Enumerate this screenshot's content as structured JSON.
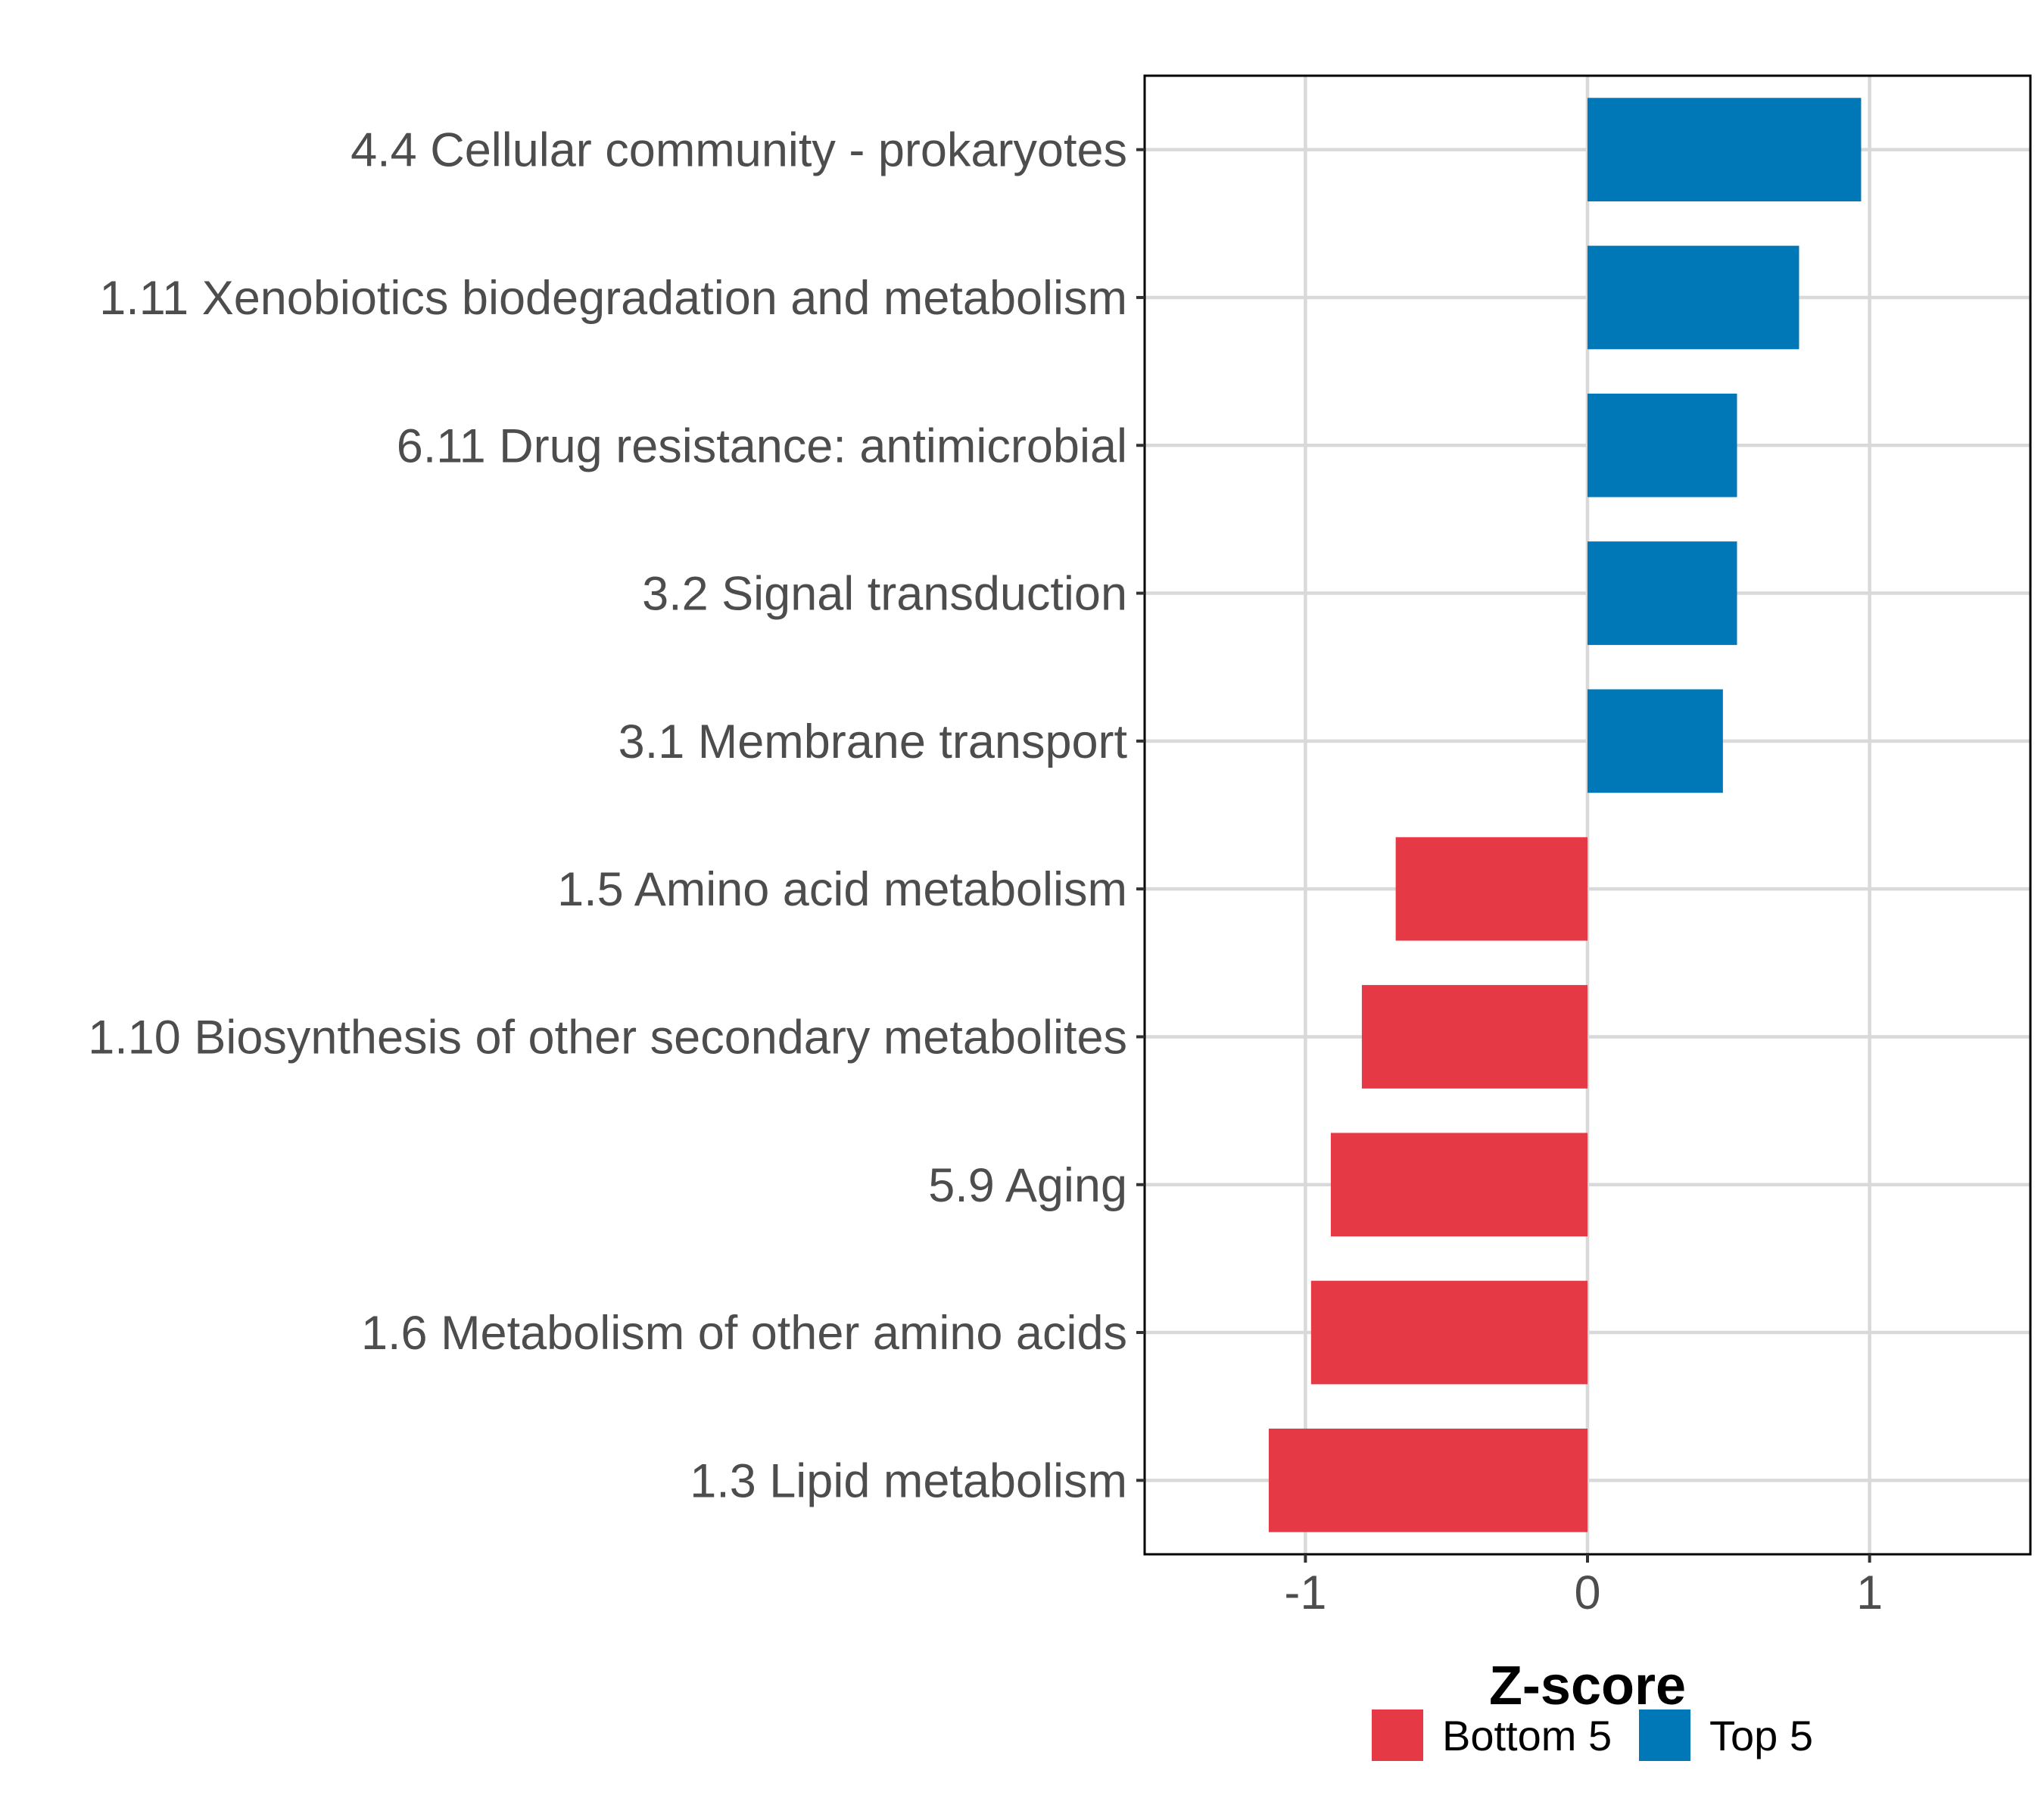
{
  "chart_data": {
    "type": "bar",
    "orientation": "horizontal",
    "title": "",
    "xlabel": "Z-score",
    "ylabel": "",
    "xlim": [
      -1.57,
      1.57
    ],
    "xticks": [
      -1,
      0,
      1
    ],
    "xtick_labels": [
      "-1",
      "0",
      "1"
    ],
    "grid": true,
    "legend_position": "bottom",
    "categories": [
      "4.4 Cellular community - prokaryotes",
      "1.11 Xenobiotics biodegradation and metabolism",
      "6.11 Drug resistance: antimicrobial",
      "3.2 Signal transduction",
      "3.1 Membrane transport",
      "1.5 Amino acid metabolism",
      "1.10 Biosynthesis of other secondary metabolites",
      "5.9 Aging",
      "1.6 Metabolism of other amino acids",
      "1.3 Lipid metabolism"
    ],
    "values": [
      0.97,
      0.75,
      0.53,
      0.53,
      0.48,
      -0.68,
      -0.8,
      -0.91,
      -0.98,
      -1.13
    ],
    "groups": [
      "Top 5",
      "Top 5",
      "Top 5",
      "Top 5",
      "Top 5",
      "Bottom 5",
      "Bottom 5",
      "Bottom 5",
      "Bottom 5",
      "Bottom 5"
    ],
    "legend": [
      {
        "name": "Bottom 5",
        "color": "#E63946"
      },
      {
        "name": "Top 5",
        "color": "#0077B6"
      }
    ]
  }
}
